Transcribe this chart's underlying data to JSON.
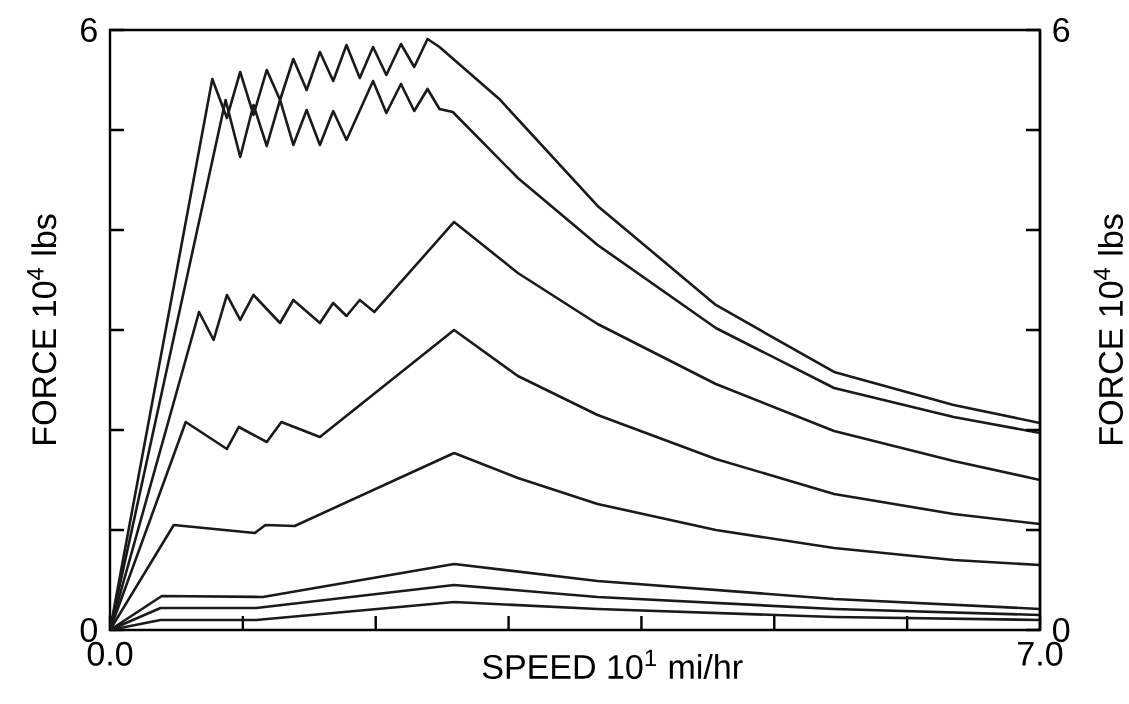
{
  "chart_data": {
    "type": "line",
    "xlabel": "SPEED 10$^{1}$ mi/hr",
    "ylabel": "FORCE 10$^{4}$ lbs",
    "y2label": "FORCE 10$^{4}$ lbs",
    "xlim": [
      0,
      7
    ],
    "xticks": [
      {
        "value": 0,
        "label": "0.0"
      },
      {
        "value": 1,
        "label": null
      },
      {
        "value": 2,
        "label": null
      },
      {
        "value": 3,
        "label": null
      },
      {
        "value": 4,
        "label": null
      },
      {
        "value": 5,
        "label": null
      },
      {
        "value": 6,
        "label": null
      },
      {
        "value": 7,
        "label": "7.0"
      }
    ],
    "ylim": [
      0,
      6
    ],
    "yticks": [
      0,
      {
        "value": 1,
        "label": null
      },
      {
        "value": 2,
        "label": null
      },
      {
        "value": 3,
        "label": null
      },
      {
        "value": 4,
        "label": null
      },
      {
        "value": 5,
        "label": null
      },
      6
    ],
    "y2lim": [
      0,
      6
    ],
    "y2ticks": [
      0,
      {
        "value": 1,
        "label": null
      },
      {
        "value": 2,
        "label": null
      },
      {
        "value": 3,
        "label": null
      },
      {
        "value": 4,
        "label": null
      },
      {
        "value": 5,
        "label": null
      },
      6
    ],
    "marker": "none",
    "line_style": "solid",
    "legend": false,
    "series": [
      {
        "color": "#1a1a1a",
        "x": [
          0,
          0.77,
          0.88,
          0.98,
          1.08,
          1.18,
          1.28,
          1.38,
          1.48,
          1.58,
          1.68,
          1.78,
          1.88,
          1.98,
          2.08,
          2.19,
          2.29,
          2.39,
          2.48,
          2.93,
          3.67,
          4.56,
          5.45,
          6.35,
          7.0
        ],
        "values": [
          0,
          5.51,
          5.12,
          5.58,
          5.15,
          5.6,
          5.3,
          5.71,
          5.4,
          5.78,
          5.49,
          5.85,
          5.52,
          5.83,
          5.55,
          5.86,
          5.63,
          5.91,
          5.83,
          5.31,
          4.24,
          3.25,
          2.58,
          2.25,
          2.07
        ]
      },
      {
        "color": "#1a1a1a",
        "x": [
          0,
          0.87,
          0.98,
          1.08,
          1.18,
          1.28,
          1.38,
          1.48,
          1.58,
          1.68,
          1.78,
          1.98,
          2.08,
          2.19,
          2.29,
          2.39,
          2.48,
          2.58,
          3.07,
          3.67,
          4.56,
          5.45,
          6.35,
          7.0
        ],
        "values": [
          0,
          5.3,
          4.73,
          5.25,
          4.84,
          5.3,
          4.85,
          5.2,
          4.85,
          5.19,
          4.9,
          5.49,
          5.17,
          5.46,
          5.19,
          5.41,
          5.21,
          5.18,
          4.52,
          3.85,
          3.02,
          2.42,
          2.13,
          1.97
        ]
      },
      {
        "color": "#1a1a1a",
        "x": [
          0,
          0.67,
          0.78,
          0.88,
          0.98,
          1.08,
          1.28,
          1.38,
          1.58,
          1.68,
          1.78,
          1.88,
          1.99,
          2.59,
          3.07,
          3.67,
          4.56,
          5.45,
          6.35,
          7.0
        ],
        "values": [
          0,
          3.18,
          2.9,
          3.35,
          3.1,
          3.35,
          3.07,
          3.3,
          3.07,
          3.27,
          3.14,
          3.3,
          3.18,
          4.08,
          3.57,
          3.06,
          2.46,
          1.99,
          1.69,
          1.5
        ]
      },
      {
        "color": "#1a1a1a",
        "x": [
          0,
          0.57,
          0.88,
          0.97,
          1.18,
          1.29,
          1.58,
          2.59,
          3.07,
          3.67,
          4.56,
          5.45,
          6.35,
          7.0
        ],
        "values": [
          0,
          2.08,
          1.81,
          2.03,
          1.88,
          2.08,
          1.93,
          3.0,
          2.54,
          2.15,
          1.71,
          1.36,
          1.16,
          1.06
        ]
      },
      {
        "color": "#1a1a1a",
        "x": [
          0,
          0.48,
          1.09,
          1.17,
          1.39,
          2.59,
          3.07,
          3.67,
          4.56,
          5.45,
          6.35,
          7.0
        ],
        "values": [
          0,
          1.05,
          0.97,
          1.05,
          1.04,
          1.77,
          1.52,
          1.26,
          1.0,
          0.82,
          0.7,
          0.65
        ]
      },
      {
        "color": "#1a1a1a",
        "x": [
          0,
          0.39,
          1.15,
          2.59,
          3.67,
          5.45,
          7.0
        ],
        "values": [
          0,
          0.34,
          0.33,
          0.66,
          0.49,
          0.31,
          0.21
        ]
      },
      {
        "color": "#1a1a1a",
        "x": [
          0,
          0.38,
          1.1,
          2.59,
          3.67,
          5.45,
          7.0
        ],
        "values": [
          0,
          0.22,
          0.22,
          0.45,
          0.33,
          0.21,
          0.15
        ]
      },
      {
        "color": "#1a1a1a",
        "x": [
          0,
          0.38,
          1.1,
          2.59,
          3.67,
          5.45,
          7.0
        ],
        "values": [
          0,
          0.1,
          0.1,
          0.28,
          0.21,
          0.13,
          0.1
        ]
      }
    ]
  }
}
